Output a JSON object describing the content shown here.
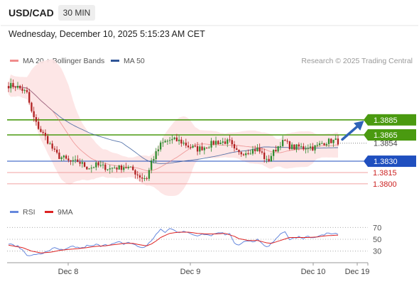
{
  "header": {
    "symbol": "USD/CAD",
    "timeframe": "30 MIN",
    "datetime": "Wednesday, December 10, 2025 5:15:23 AM CET"
  },
  "legend": {
    "items": [
      {
        "label": "MA 20 + Bollinger Bands",
        "color": "#f08c8c"
      },
      {
        "label": "MA 50",
        "color": "#2f5597"
      }
    ],
    "credit": "Research © 2025 Trading Central"
  },
  "colors": {
    "candle_up": "#2e8b2e",
    "candle_down": "#b02020",
    "ma20": "#e66a6a",
    "ma50": "#2f5597",
    "bollinger_fill": "#fde3e3",
    "target_green": "#4a9a10",
    "pivot_blue": "#1f4fbf",
    "support_red": "#cc2222",
    "rsi_line": "#6688dd",
    "rsi_ma": "#dd2222",
    "arrow": "#2f63b8"
  },
  "chart_data": [
    {
      "type": "candlestick",
      "title": "USD/CAD 30 MIN",
      "x_labels": [
        "Dec 8",
        "Dec 9",
        "Dec 10",
        "Dec 19"
      ],
      "y_range": [
        1.378,
        1.395
      ],
      "levels": [
        {
          "label": "1.3885",
          "value": 1.3885,
          "kind": "target"
        },
        {
          "label": "1.3865",
          "value": 1.3865,
          "kind": "target"
        },
        {
          "label": "1.3854",
          "value": 1.3854,
          "kind": "last"
        },
        {
          "label": "1.3830",
          "value": 1.383,
          "kind": "pivot"
        },
        {
          "label": "1.3815",
          "value": 1.3815,
          "kind": "support"
        },
        {
          "label": "1.3800",
          "value": 1.38,
          "kind": "support"
        }
      ],
      "close_path": [
        [
          0,
          1.3931
        ],
        [
          3,
          1.393
        ],
        [
          6,
          1.3925
        ],
        [
          8,
          1.392
        ],
        [
          10,
          1.3895
        ],
        [
          12,
          1.388
        ],
        [
          14,
          1.387
        ],
        [
          16,
          1.3862
        ],
        [
          18,
          1.3852
        ],
        [
          20,
          1.3842
        ],
        [
          22,
          1.3836
        ],
        [
          24,
          1.3834
        ],
        [
          26,
          1.383
        ],
        [
          28,
          1.3828
        ],
        [
          30,
          1.383
        ],
        [
          32,
          1.3826
        ],
        [
          34,
          1.3822
        ],
        [
          36,
          1.3822
        ],
        [
          38,
          1.3825
        ],
        [
          40,
          1.3823
        ],
        [
          42,
          1.3822
        ],
        [
          44,
          1.382
        ],
        [
          46,
          1.3822
        ],
        [
          48,
          1.3821
        ],
        [
          50,
          1.3823
        ],
        [
          52,
          1.3821
        ],
        [
          54,
          1.3818
        ],
        [
          56,
          1.3812
        ],
        [
          58,
          1.3808
        ],
        [
          60,
          1.3808
        ],
        [
          61,
          1.3818
        ],
        [
          62,
          1.383
        ],
        [
          64,
          1.384
        ],
        [
          66,
          1.3852
        ],
        [
          68,
          1.3856
        ],
        [
          70,
          1.3858
        ],
        [
          72,
          1.3858
        ],
        [
          74,
          1.3857
        ],
        [
          76,
          1.3854
        ],
        [
          78,
          1.385
        ],
        [
          80,
          1.3848
        ],
        [
          82,
          1.3846
        ],
        [
          84,
          1.3848
        ],
        [
          86,
          1.385
        ],
        [
          88,
          1.3853
        ],
        [
          90,
          1.3856
        ],
        [
          92,
          1.3855
        ],
        [
          94,
          1.3856
        ],
        [
          96,
          1.3855
        ],
        [
          98,
          1.3844
        ],
        [
          100,
          1.384
        ],
        [
          102,
          1.3842
        ],
        [
          104,
          1.3843
        ],
        [
          106,
          1.3845
        ],
        [
          108,
          1.3846
        ],
        [
          110,
          1.384
        ],
        [
          112,
          1.383
        ],
        [
          113,
          1.3832
        ],
        [
          114,
          1.3838
        ],
        [
          116,
          1.3846
        ],
        [
          118,
          1.3854
        ],
        [
          120,
          1.3856
        ],
        [
          122,
          1.385
        ],
        [
          124,
          1.3848
        ],
        [
          126,
          1.3849
        ],
        [
          128,
          1.3848
        ],
        [
          130,
          1.385
        ],
        [
          132,
          1.3848
        ],
        [
          134,
          1.385
        ],
        [
          136,
          1.3854
        ],
        [
          138,
          1.3856
        ],
        [
          140,
          1.3857
        ],
        [
          142,
          1.3857
        ],
        [
          143,
          1.3856
        ]
      ],
      "annotations": [
        {
          "kind": "arrow",
          "from_value": 1.3858,
          "to_value": 1.3883
        }
      ]
    },
    {
      "type": "line",
      "title": "RSI",
      "series": [
        {
          "name": "RSI"
        },
        {
          "name": "9MA"
        }
      ],
      "y_range": [
        20,
        80
      ],
      "y_ticks": [
        70,
        50,
        30
      ],
      "rsi_path": [
        [
          0,
          42
        ],
        [
          4,
          38
        ],
        [
          6,
          32
        ],
        [
          8,
          24
        ],
        [
          10,
          22
        ],
        [
          12,
          25
        ],
        [
          14,
          24
        ],
        [
          16,
          29
        ],
        [
          18,
          32
        ],
        [
          20,
          35
        ],
        [
          22,
          33
        ],
        [
          24,
          31
        ],
        [
          26,
          35
        ],
        [
          28,
          38
        ],
        [
          30,
          36
        ],
        [
          32,
          35
        ],
        [
          34,
          39
        ],
        [
          36,
          38
        ],
        [
          38,
          41
        ],
        [
          40,
          39
        ],
        [
          42,
          42
        ],
        [
          44,
          40
        ],
        [
          46,
          43
        ],
        [
          48,
          45
        ],
        [
          50,
          42
        ],
        [
          52,
          45
        ],
        [
          54,
          42
        ],
        [
          56,
          38
        ],
        [
          58,
          36
        ],
        [
          60,
          39
        ],
        [
          62,
          48
        ],
        [
          64,
          58
        ],
        [
          66,
          66
        ],
        [
          68,
          62
        ],
        [
          70,
          68
        ],
        [
          72,
          65
        ],
        [
          74,
          62
        ],
        [
          76,
          64
        ],
        [
          78,
          60
        ],
        [
          80,
          58
        ],
        [
          82,
          56
        ],
        [
          84,
          60
        ],
        [
          86,
          58
        ],
        [
          88,
          57
        ],
        [
          90,
          60
        ],
        [
          92,
          62
        ],
        [
          94,
          58
        ],
        [
          96,
          61
        ],
        [
          98,
          44
        ],
        [
          100,
          40
        ],
        [
          102,
          45
        ],
        [
          104,
          47
        ],
        [
          106,
          45
        ],
        [
          108,
          50
        ],
        [
          110,
          42
        ],
        [
          112,
          36
        ],
        [
          114,
          42
        ],
        [
          116,
          52
        ],
        [
          118,
          58
        ],
        [
          120,
          62
        ],
        [
          122,
          50
        ],
        [
          124,
          52
        ],
        [
          126,
          54
        ],
        [
          128,
          50
        ],
        [
          130,
          56
        ],
        [
          132,
          52
        ],
        [
          134,
          54
        ],
        [
          136,
          57
        ],
        [
          138,
          60
        ],
        [
          140,
          58
        ],
        [
          142,
          60
        ],
        [
          143,
          59
        ]
      ],
      "ma_path": [
        [
          0,
          40
        ],
        [
          6,
          36
        ],
        [
          10,
          30
        ],
        [
          14,
          27
        ],
        [
          18,
          28
        ],
        [
          22,
          31
        ],
        [
          26,
          33
        ],
        [
          30,
          34
        ],
        [
          34,
          36
        ],
        [
          38,
          38
        ],
        [
          42,
          39
        ],
        [
          46,
          41
        ],
        [
          50,
          43
        ],
        [
          54,
          43
        ],
        [
          58,
          40
        ],
        [
          60,
          39
        ],
        [
          62,
          42
        ],
        [
          64,
          47
        ],
        [
          66,
          53
        ],
        [
          70,
          60
        ],
        [
          74,
          62
        ],
        [
          78,
          62
        ],
        [
          82,
          60
        ],
        [
          86,
          59
        ],
        [
          90,
          59
        ],
        [
          94,
          60
        ],
        [
          98,
          55
        ],
        [
          100,
          51
        ],
        [
          104,
          48
        ],
        [
          108,
          48
        ],
        [
          112,
          44
        ],
        [
          114,
          43
        ],
        [
          118,
          48
        ],
        [
          122,
          53
        ],
        [
          126,
          53
        ],
        [
          130,
          53
        ],
        [
          134,
          54
        ],
        [
          138,
          56
        ],
        [
          143,
          57
        ]
      ]
    }
  ],
  "rsi_legend": {
    "items": [
      {
        "label": "RSI",
        "color": "#6688dd"
      },
      {
        "label": "9MA",
        "color": "#dd2222"
      }
    ]
  }
}
